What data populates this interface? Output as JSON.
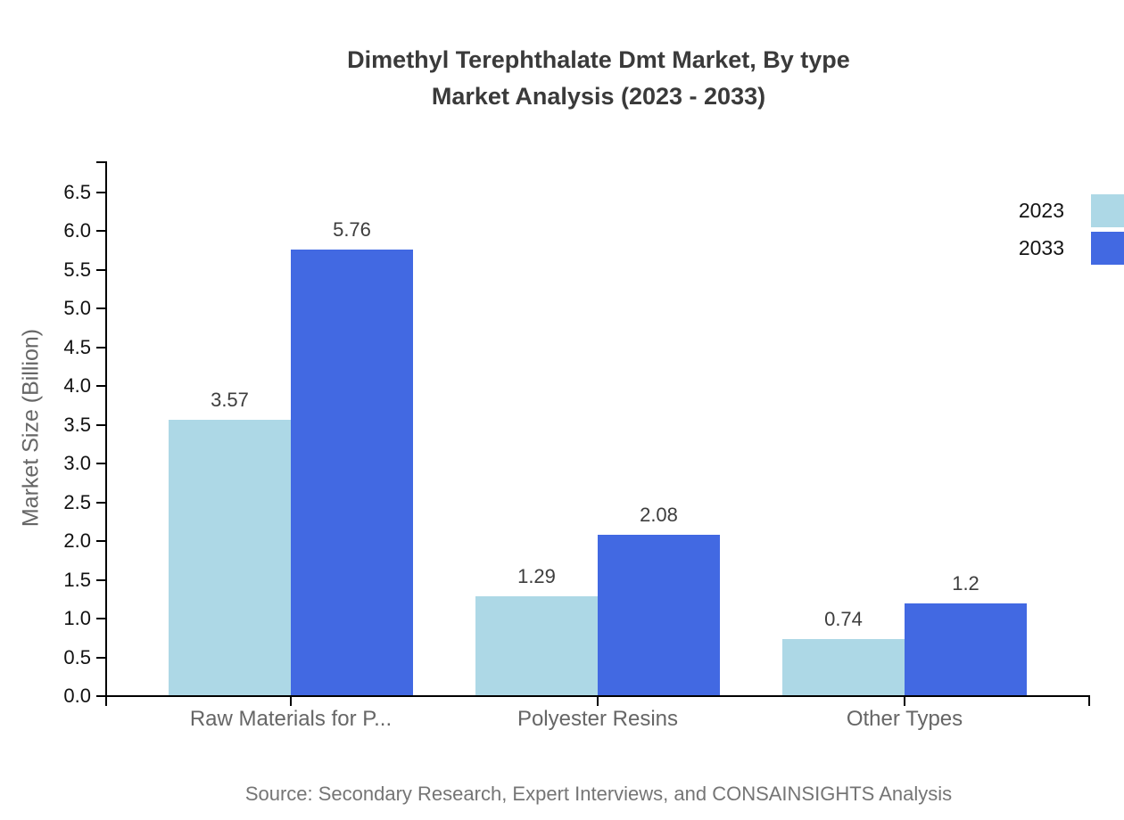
{
  "chart_data": {
    "type": "bar",
    "title_lines": [
      "Dimethyl Terephthalate Dmt Market, By type",
      "Market Analysis (2023 - 2033)"
    ],
    "categories": [
      "Raw Materials for P...",
      "Polyester Resins",
      "Other Types"
    ],
    "series": [
      {
        "name": "2023",
        "color": "#ADD8E6",
        "values": [
          3.57,
          1.29,
          0.74
        ],
        "labels": [
          "3.57",
          "1.29",
          "0.74"
        ]
      },
      {
        "name": "2033",
        "color": "#4269E2",
        "values": [
          5.76,
          2.08,
          1.2
        ],
        "labels": [
          "5.76",
          "2.08",
          "1.2"
        ]
      }
    ],
    "xlabel": "",
    "ylabel": "Market Size (Billion)",
    "ylim": [
      0,
      6.9
    ],
    "ytick_step": 0.5,
    "ytick_labels": [
      "0.0",
      "0.5",
      "1.0",
      "1.5",
      "2.0",
      "2.5",
      "3.0",
      "3.5",
      "4.0",
      "4.5",
      "5.0",
      "5.5",
      "6.0",
      "6.5"
    ],
    "grid": false,
    "legend_position": "top-right",
    "axis_color": "#000000",
    "source": "Source: Secondary Research, Expert Interviews, and CONSAINSIGHTS Analysis"
  }
}
